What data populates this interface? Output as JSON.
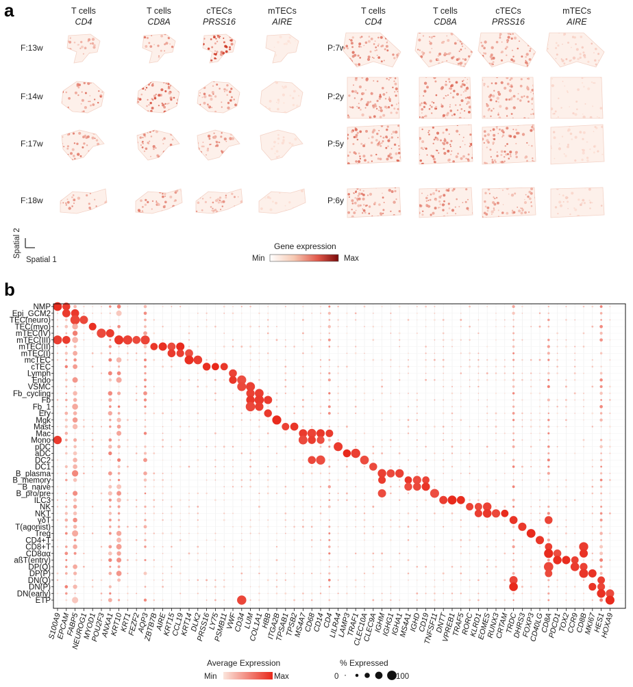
{
  "panel_a": {
    "letter": "a",
    "columns": [
      {
        "cell_type": "T cells",
        "gene": "CD4"
      },
      {
        "cell_type": "T cells",
        "gene": "CD8A"
      },
      {
        "cell_type": "cTECs",
        "gene": "PRSS16"
      },
      {
        "cell_type": "mTECs",
        "gene": "AIRE"
      },
      {
        "cell_type": "T cells",
        "gene": "CD4"
      },
      {
        "cell_type": "T cells",
        "gene": "CD8A"
      },
      {
        "cell_type": "cTECs",
        "gene": "PRSS16"
      },
      {
        "cell_type": "mTECs",
        "gene": "AIRE"
      }
    ],
    "fetal_samples": [
      "F:13w",
      "F:14w",
      "F:17w",
      "F:18w"
    ],
    "postnatal_samples": [
      "P:7w",
      "P:2y",
      "P:5y",
      "P:6y"
    ],
    "axis_y": "Spatial 2",
    "axis_x": "Spatial 1",
    "legend": {
      "title": "Gene expression",
      "min": "Min",
      "max": "Max",
      "color_low": "#ffffff",
      "color_high": "#7a0a0a"
    }
  },
  "chart_data": {
    "type": "dotplot",
    "panel_letter": "b",
    "cell_types": [
      "NMP",
      "Epi_GCM2",
      "TEC(neuro)",
      "TEC(myo)",
      "mTEC(IV)",
      "mTEC(III)",
      "mTEC(II)",
      "mTEC(I)",
      "mcTEC",
      "cTEC",
      "Lymph",
      "Endo",
      "VSMC",
      "Fb_cycling",
      "Fb",
      "Fb_1",
      "Ery",
      "Mgk",
      "Mast",
      "Mac",
      "Mono",
      "pDC",
      "aDC",
      "DC2",
      "DC1",
      "B_plasma",
      "B_memory",
      "B_naive",
      "B_pro/pre",
      "ILC3",
      "NK",
      "NKT",
      "γδT",
      "T(agonist)",
      "Treg",
      "CD4+T",
      "CD8+T",
      "CD8αα",
      "aßT(entry)",
      "DP(Q)",
      "DP(P)",
      "DN(Q)",
      "DN(P)",
      "DN(early)",
      "ETP"
    ],
    "genes": [
      "S100A9",
      "EPCAM",
      "FABP5",
      "NEUROG1",
      "MYOD1",
      "POU2F3",
      "ANXA1",
      "KRT10",
      "KRT1",
      "FEZF2",
      "AQP3",
      "ZBTB7B",
      "AIRE",
      "KRT15",
      "CCL19",
      "KRT14",
      "DLK2",
      "PRSS16",
      "LY75",
      "PSMB11",
      "VWF",
      "CD34",
      "LUM",
      "COL1A1",
      "HBB",
      "ITGA2B",
      "TPSAB1",
      "TPSB2",
      "MS4A7",
      "CD68",
      "CD14",
      "CD4",
      "LILRA4",
      "LAMP3",
      "TRAF1",
      "CLEC10A",
      "CLEC9A",
      "IGHM",
      "IGHG1",
      "IGHA1",
      "MS4A1",
      "IGHD",
      "CD19",
      "TNFSF11",
      "DNTT",
      "VPREB1",
      "TRAF5",
      "RORC",
      "KLRD1",
      "EOMES",
      "RUNX3",
      "CRTAM",
      "TRDC",
      "DHRS3",
      "FOXP3",
      "CD40LG",
      "CD8A",
      "PDCD1",
      "TOX2",
      "CCR9",
      "CD8B",
      "MKI67",
      "HES1",
      "HOXA9"
    ],
    "marker_genes": [
      [
        "S100A9",
        "EPCAM"
      ],
      [
        "EPCAM",
        "FABP5"
      ],
      [
        "FABP5",
        "NEUROG1"
      ],
      [
        "MYOD1"
      ],
      [
        "POU2F3",
        "ANXA1"
      ],
      [
        "S100A9",
        "EPCAM",
        "KRT10",
        "KRT1",
        "FEZF2",
        "AQP3"
      ],
      [
        "ZBTB7B",
        "AIRE",
        "KRT15",
        "CCL19"
      ],
      [
        "KRT15",
        "CCL19",
        "KRT14"
      ],
      [
        "KRT14",
        "DLK2"
      ],
      [
        "PRSS16",
        "LY75",
        "PSMB11"
      ],
      [
        "VWF"
      ],
      [
        "VWF",
        "CD34"
      ],
      [
        "CD34",
        "LUM"
      ],
      [
        "LUM",
        "COL1A1"
      ],
      [
        "LUM",
        "COL1A1",
        "HBB"
      ],
      [
        "LUM",
        "COL1A1"
      ],
      [
        "HBB"
      ],
      [
        "ITGA2B"
      ],
      [
        "TPSAB1",
        "TPSB2"
      ],
      [
        "MS4A7",
        "CD68",
        "CD14",
        "CD4"
      ],
      [
        "S100A9",
        "MS4A7",
        "CD68",
        "CD14"
      ],
      [
        "LILRA4"
      ],
      [
        "LAMP3",
        "TRAF1"
      ],
      [
        "CD68",
        "CD14",
        "CLEC10A"
      ],
      [
        "CLEC9A"
      ],
      [
        "IGHM",
        "IGHG1",
        "IGHA1"
      ],
      [
        "IGHM",
        "MS4A1",
        "IGHD",
        "CD19"
      ],
      [
        "MS4A1",
        "IGHD",
        "CD19"
      ],
      [
        "IGHM",
        "TNFSF11"
      ],
      [
        "DNTT",
        "VPREB1",
        "TRAF5"
      ],
      [
        "RORC",
        "KLRD1",
        "EOMES"
      ],
      [
        "KLRD1",
        "EOMES",
        "RUNX3",
        "CRTAM"
      ],
      [
        "TRDC",
        "CD8A"
      ],
      [
        "DHRS3"
      ],
      [
        "FOXP3"
      ],
      [
        "CD40LG"
      ],
      [
        "CD8A",
        "CD8B"
      ],
      [
        "CD8A",
        "PDCD1",
        "CD8B"
      ],
      [
        "PDCD1",
        "TOX2",
        "CCR9"
      ],
      [
        "CD8A",
        "CCR9",
        "CD8B"
      ],
      [
        "CD8A",
        "CD8B",
        "MKI67"
      ],
      [
        "TRDC",
        "HES1"
      ],
      [
        "TRDC",
        "MKI67",
        "HES1"
      ],
      [
        "HES1",
        "HOXA9"
      ],
      [
        "HOXA9",
        "CD34"
      ]
    ],
    "legend_color": {
      "title": "Average Expression",
      "min": "Min",
      "max": "Max",
      "color_low": "#fbe5dc",
      "color_high": "#e8291b"
    },
    "legend_size": {
      "title": "% Expressed",
      "min": "0",
      "max": "100",
      "steps": [
        0,
        25,
        50,
        75,
        100
      ]
    }
  }
}
